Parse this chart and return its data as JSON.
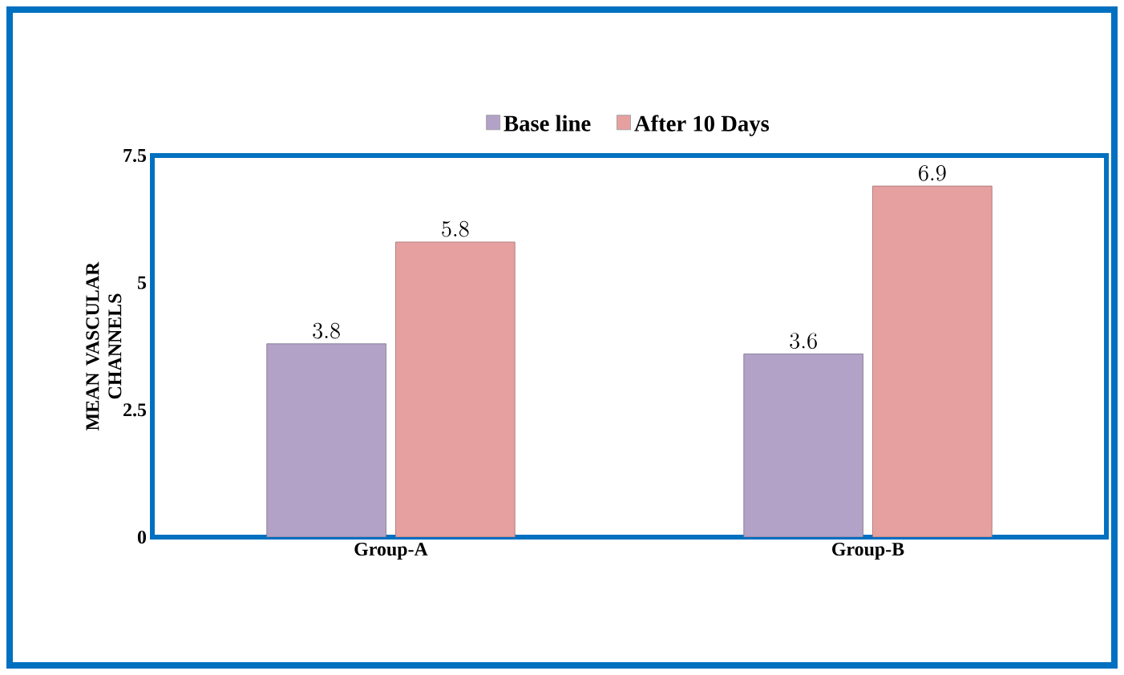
{
  "chart_data": {
    "type": "bar",
    "ylabel": "MEAN VASCULAR CHANNELS",
    "categories": [
      "Group-A",
      "Group-B"
    ],
    "series": [
      {
        "name": "Base line",
        "color": "#b3a2c7",
        "values": [
          3.8,
          3.6
        ]
      },
      {
        "name": "After 10 Days",
        "color": "#e6a0a0",
        "values": [
          5.8,
          6.9
        ]
      }
    ],
    "ylim": [
      0,
      7.5
    ],
    "yticks": [
      0,
      2.5,
      5,
      7.5
    ],
    "data_labels": true,
    "legend": "top",
    "grid": false
  }
}
